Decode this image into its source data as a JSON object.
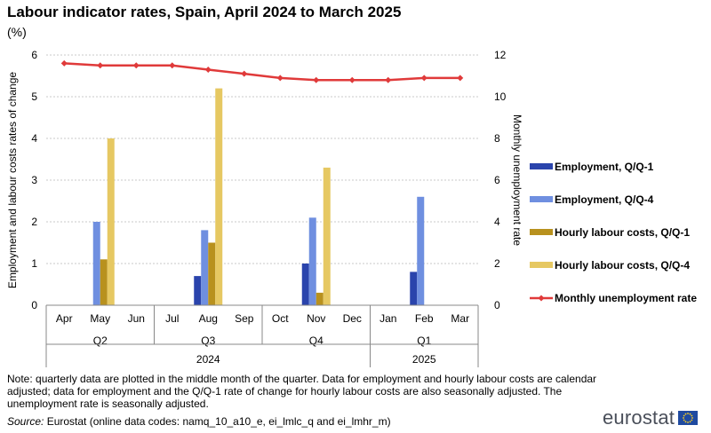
{
  "header": {
    "title": "Labour indicator rates, Spain, April 2024 to March 2025",
    "subtitle": "(%)"
  },
  "chart_data": {
    "type": "bar",
    "months": [
      "Apr",
      "May",
      "Jun",
      "Jul",
      "Aug",
      "Sep",
      "Oct",
      "Nov",
      "Dec",
      "Jan",
      "Feb",
      "Mar"
    ],
    "quarters": [
      {
        "label": "Q2",
        "months": [
          "Apr",
          "May",
          "Jun"
        ]
      },
      {
        "label": "Q3",
        "months": [
          "Jul",
          "Aug",
          "Sep"
        ]
      },
      {
        "label": "Q4",
        "months": [
          "Oct",
          "Nov",
          "Dec"
        ]
      },
      {
        "label": "Q1",
        "months": [
          "Jan",
          "Feb",
          "Mar"
        ]
      }
    ],
    "years": [
      {
        "label": "2024",
        "months": [
          "Apr",
          "May",
          "Jun",
          "Jul",
          "Aug",
          "Sep",
          "Oct",
          "Nov",
          "Dec"
        ]
      },
      {
        "label": "2025",
        "months": [
          "Jan",
          "Feb",
          "Mar"
        ]
      }
    ],
    "ylabel_left": "Employment and labour costs rates of change",
    "ylabel_right": "Monthly unemployment rate",
    "ylim_left": [
      0,
      6
    ],
    "ylim_right": [
      0,
      12
    ],
    "yticks_left": [
      0,
      1,
      2,
      3,
      4,
      5,
      6
    ],
    "yticks_right": [
      0,
      2,
      4,
      6,
      8,
      10,
      12
    ],
    "grid": true,
    "legend_position": "right",
    "bar_series": [
      {
        "name": "Employment, Q/Q-1",
        "color": "#2a44ac",
        "values": [
          null,
          null,
          null,
          null,
          0.7,
          null,
          null,
          1.0,
          null,
          null,
          0.8,
          null
        ]
      },
      {
        "name": "Employment, Q/Q-4",
        "color": "#6f8fe0",
        "values": [
          null,
          2.0,
          null,
          null,
          1.8,
          null,
          null,
          2.1,
          null,
          null,
          2.6,
          null
        ]
      },
      {
        "name": "Hourly labour costs, Q/Q-1",
        "color": "#b8911e",
        "values": [
          null,
          1.1,
          null,
          null,
          1.5,
          null,
          null,
          0.3,
          null,
          null,
          null,
          null
        ]
      },
      {
        "name": "Hourly labour costs, Q/Q-4",
        "color": "#e6c862",
        "values": [
          null,
          4.0,
          null,
          null,
          5.2,
          null,
          null,
          3.3,
          null,
          null,
          null,
          null
        ]
      }
    ],
    "line_series": [
      {
        "name": "Monthly unemployment rate",
        "color": "#e03a3a",
        "axis": "right",
        "values": [
          11.6,
          11.5,
          11.5,
          11.5,
          11.3,
          11.1,
          10.9,
          10.8,
          10.8,
          10.8,
          10.9,
          10.9
        ]
      }
    ]
  },
  "footer": {
    "note": "Note: quarterly data are plotted in the middle month of the quarter. Data for employment and hourly labour costs are calendar adjusted; data for employment and the Q/Q-1 rate of change for hourly labour costs are also seasonally adjusted. The unemployment rate is seasonally adjusted.",
    "source_label": "Source:",
    "source_text": " Eurostat (online data codes: namq_10_a10_e, ei_lmlc_q and ei_lmhr_m)",
    "brand": "eurostat"
  },
  "colors": {
    "axis": "#333333",
    "grid": "#c8c8c8",
    "flag_blue": "#1f4aa0",
    "flag_star": "#ffd21f"
  }
}
